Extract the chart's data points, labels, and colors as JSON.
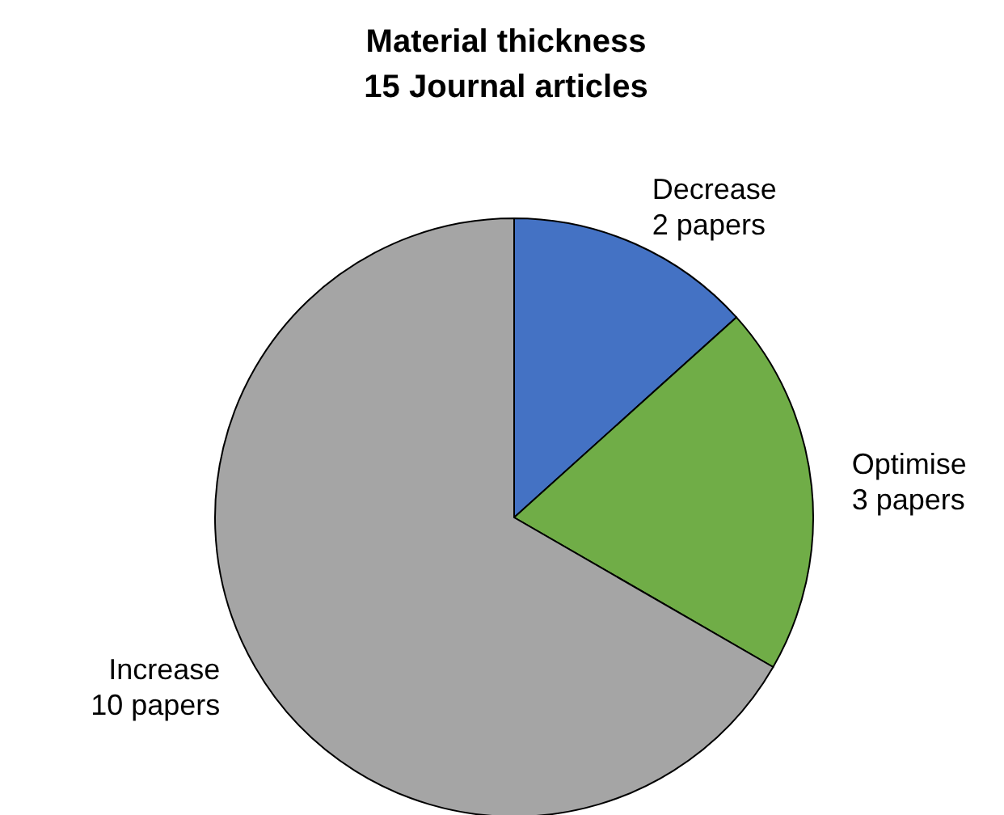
{
  "chart_data": {
    "type": "pie",
    "title": "Material thickness",
    "subtitle": "15 Journal articles",
    "categories": [
      "Decrease",
      "Optimise",
      "Increase"
    ],
    "values": [
      2,
      3,
      10
    ],
    "value_labels": [
      "2 papers",
      "3 papers",
      "10 papers"
    ],
    "colors": [
      "#4472c4",
      "#70ad47",
      "#a5a5a5"
    ],
    "legend": false
  }
}
